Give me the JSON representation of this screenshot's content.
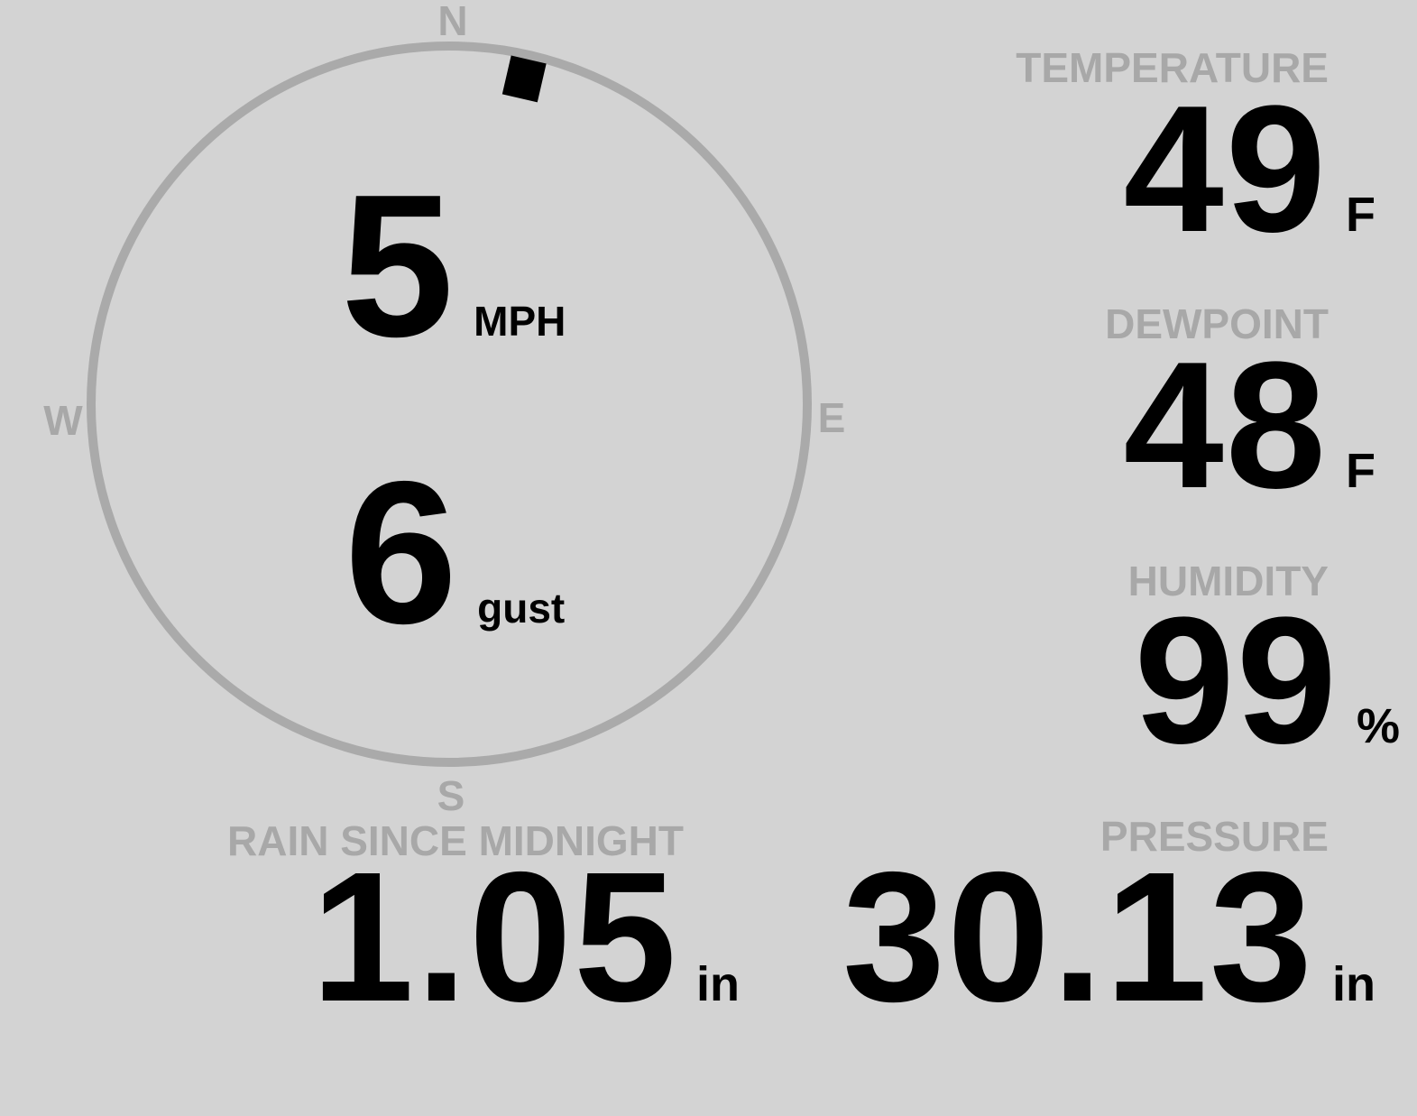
{
  "wind": {
    "speed": "5",
    "speed_unit": "MPH",
    "gust": "6",
    "gust_unit": "gust",
    "direction_degrees": 13,
    "compass": {
      "north": "N",
      "east": "E",
      "south": "S",
      "west": "W"
    }
  },
  "temperature": {
    "label": "TEMPERATURE",
    "value": "49",
    "unit": "F"
  },
  "dewpoint": {
    "label": "DEWPOINT",
    "value": "48",
    "unit": "F"
  },
  "humidity": {
    "label": "HUMIDITY",
    "value": "99",
    "unit": "%"
  },
  "rain": {
    "label": "RAIN SINCE MIDNIGHT",
    "value": "1.05",
    "unit": "in"
  },
  "pressure": {
    "label": "PRESSURE",
    "value": "30.13",
    "unit": "in"
  },
  "colors": {
    "background": "#d3d3d3",
    "label": "#a8a8a8",
    "value": "#000000",
    "dial": "#aaaaaa"
  }
}
